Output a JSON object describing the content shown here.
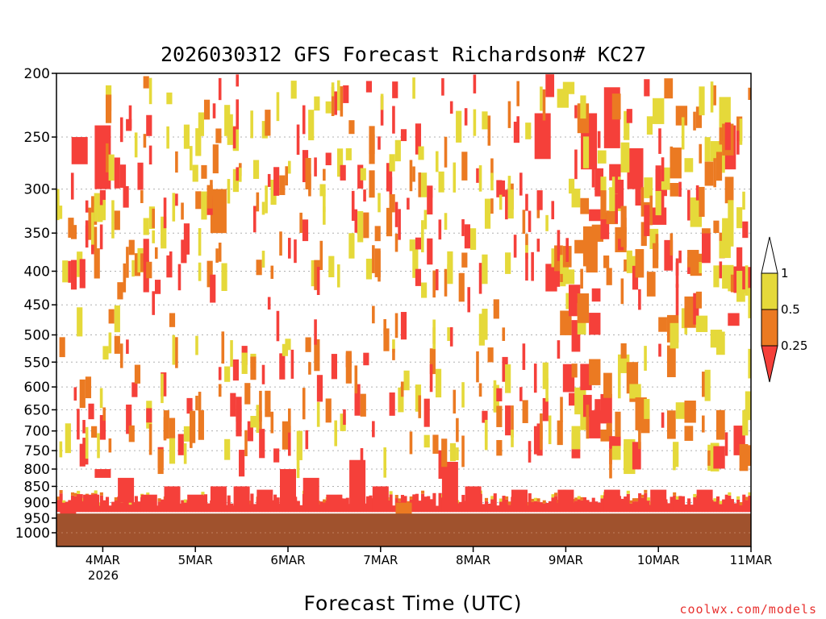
{
  "chart_data": {
    "type": "heatmap",
    "title": "2026030312 GFS Forecast Richardson# KC27",
    "xlabel": "Forecast Time (UTC)",
    "ylabel": "",
    "y_axis": {
      "scale": "log",
      "reversed": true,
      "range": [
        200,
        1000
      ],
      "ticks": [
        200,
        250,
        300,
        350,
        400,
        450,
        500,
        550,
        600,
        650,
        700,
        750,
        800,
        850,
        900,
        950,
        1000
      ]
    },
    "x_axis": {
      "range": [
        "2026-03-03T12",
        "2026-03-11T00"
      ],
      "ticks": [
        "4MAR",
        "5MAR",
        "6MAR",
        "7MAR",
        "8MAR",
        "9MAR",
        "10MAR",
        "11MAR"
      ],
      "year_label": "2026"
    },
    "grid": "dotted horizontal at each pressure tick",
    "legend": {
      "position": "right",
      "labels": [
        "1",
        "0.5",
        "0.25"
      ],
      "bins": [
        {
          "range": "< 0.25",
          "color": "#f5403a"
        },
        {
          "range": "0.25 - 0.5",
          "color": "#eb7a22"
        },
        {
          "range": "0.5 - 1",
          "color": "#e5d93a"
        },
        {
          "range": "> 1",
          "color": "#ffffff"
        }
      ]
    },
    "colors": {
      "low": "#f5403a",
      "mid": "#eb7a22",
      "high": "#e5d93a",
      "ground": "#a0522d"
    },
    "cells": [
      {
        "t": "03T15",
        "p": "900-950",
        "c": "low"
      },
      {
        "t": "03T21",
        "p": "875-925",
        "c": "low"
      },
      {
        "t": "04T00",
        "p": "800-825",
        "c": "low"
      },
      {
        "t": "04T06",
        "p": "825-900",
        "c": "low"
      },
      {
        "t": "04T12",
        "p": "875-925",
        "c": "low"
      },
      {
        "t": "04T18",
        "p": "850-925",
        "c": "low"
      },
      {
        "t": "05T00",
        "p": "875-925",
        "c": "low"
      },
      {
        "t": "05T06",
        "p": "850-925",
        "c": "low"
      },
      {
        "t": "05T12",
        "p": "850-925",
        "c": "low"
      },
      {
        "t": "05T18",
        "p": "860-925",
        "c": "low"
      },
      {
        "t": "06T00",
        "p": "800-925",
        "c": "low"
      },
      {
        "t": "06T06",
        "p": "825-925",
        "c": "low"
      },
      {
        "t": "06T12",
        "p": "875-925",
        "c": "low"
      },
      {
        "t": "06T18",
        "p": "775-925",
        "c": "low"
      },
      {
        "t": "07T00",
        "p": "850-925",
        "c": "low"
      },
      {
        "t": "07T06",
        "p": "900-940",
        "c": "mid"
      },
      {
        "t": "07T18",
        "p": "780-925",
        "c": "low"
      },
      {
        "t": "08T00",
        "p": "850-925",
        "c": "low"
      },
      {
        "t": "08T12",
        "p": "860-925",
        "c": "low"
      },
      {
        "t": "09T00",
        "p": "860-925",
        "c": "low"
      },
      {
        "t": "09T12",
        "p": "860-925",
        "c": "low"
      },
      {
        "t": "10T00",
        "p": "860-925",
        "c": "low"
      },
      {
        "t": "10T12",
        "p": "860-925",
        "c": "low"
      },
      {
        "t": "03T18",
        "p": "250-275",
        "c": "low"
      },
      {
        "t": "04T00",
        "p": "240-300",
        "c": "low"
      },
      {
        "t": "05T06",
        "p": "300-350",
        "c": "mid"
      },
      {
        "t": "08T18",
        "p": "230-270",
        "c": "low"
      },
      {
        "t": "09T06",
        "p": "230-280",
        "c": "low"
      },
      {
        "t": "09T12",
        "p": "210-260",
        "c": "low"
      },
      {
        "t": "09T18",
        "p": "260-300",
        "c": "low"
      },
      {
        "t": "10T00",
        "p": "320-340",
        "c": "low"
      },
      {
        "t": "10T18",
        "p": "240-280",
        "c": "low"
      }
    ]
  },
  "credit": "coolwx.com/models"
}
